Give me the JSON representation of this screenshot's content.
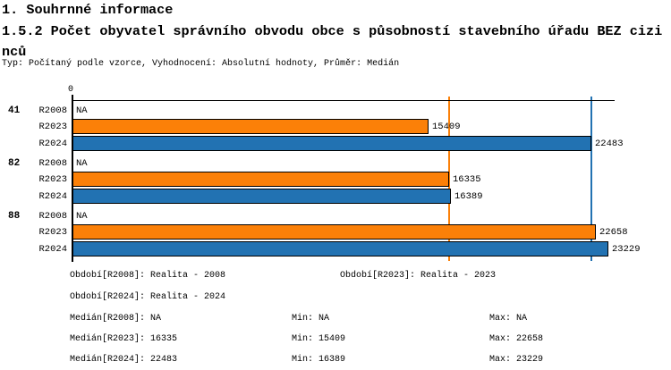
{
  "header": {
    "title_line1": "1. Souhrnné informace",
    "title_line2": "1.5.2 Počet obyvatel správního obvodu obce s působností stavebního úřadu BEZ cizinců",
    "meta_line": "Typ: Počítaný podle vzorce, Vyhodnocení: Absolutní hodnoty, Průměr: Medián"
  },
  "chart_data": {
    "type": "bar",
    "orientation": "horizontal",
    "x_axis": {
      "origin_label": "0",
      "min": 0,
      "max": 23490,
      "visible_ticks": [
        "0"
      ]
    },
    "series_colors": {
      "R2023": "#fb8008",
      "R2024": "#2272b2"
    },
    "categories": [
      "41",
      "82",
      "88"
    ],
    "groups": [
      {
        "label": "41",
        "rows": [
          {
            "series": "R2008",
            "value": null,
            "label": "NA"
          },
          {
            "series": "R2023",
            "value": 15409,
            "label": "15409"
          },
          {
            "series": "R2024",
            "value": 22483,
            "label": "22483"
          }
        ]
      },
      {
        "label": "82",
        "rows": [
          {
            "series": "R2008",
            "value": null,
            "label": "NA"
          },
          {
            "series": "R2023",
            "value": 16335,
            "label": "16335"
          },
          {
            "series": "R2024",
            "value": 16389,
            "label": "16389"
          }
        ]
      },
      {
        "label": "88",
        "rows": [
          {
            "series": "R2008",
            "value": null,
            "label": "NA"
          },
          {
            "series": "R2023",
            "value": 22658,
            "label": "22658"
          },
          {
            "series": "R2024",
            "value": 23229,
            "label": "23229"
          }
        ]
      }
    ],
    "reference_lines": [
      {
        "name": "median-R2023",
        "value": 16335,
        "color": "#fb8008"
      },
      {
        "name": "median-R2024",
        "value": 22483,
        "color": "#2272b2"
      }
    ]
  },
  "legend": {
    "row1_left": "Období[R2008]: Realita - 2008",
    "row1_mid": "Období[R2023]: Realita - 2023",
    "row2_left": "Období[R2024]: Realita - 2024"
  },
  "stats": {
    "rows": [
      {
        "median": "Medián[R2008]: NA",
        "min": "Min: NA",
        "max": "Max: NA"
      },
      {
        "median": "Medián[R2023]: 16335",
        "min": "Min: 15409",
        "max": "Max: 22658"
      },
      {
        "median": "Medián[R2024]: 22483",
        "min": "Min: 16389",
        "max": "Max: 23229"
      }
    ]
  }
}
